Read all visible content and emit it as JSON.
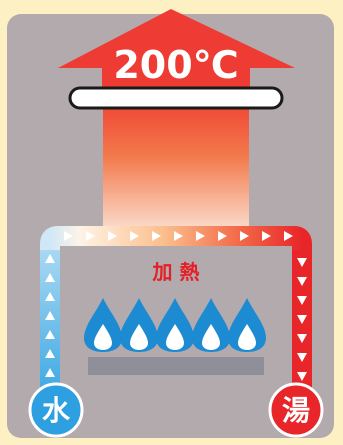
{
  "temperature": "200℃",
  "heating_label": "加 熱",
  "inlet_label": "水",
  "outlet_label": "湯",
  "colors": {
    "page_background": "#fdf1c4",
    "panel_background": "#b3aaae",
    "heat_arrow": "#ee3b33",
    "cold_water": "#4db6e8",
    "hot_water": "#e8262a",
    "flame": "#1c8bd2",
    "burner": "#8f8f99"
  },
  "flame_count": 5,
  "icons": {
    "heat": "up-arrow-icon",
    "flame": "gas-flame-icon",
    "flow": "triangle-arrow-icon"
  }
}
